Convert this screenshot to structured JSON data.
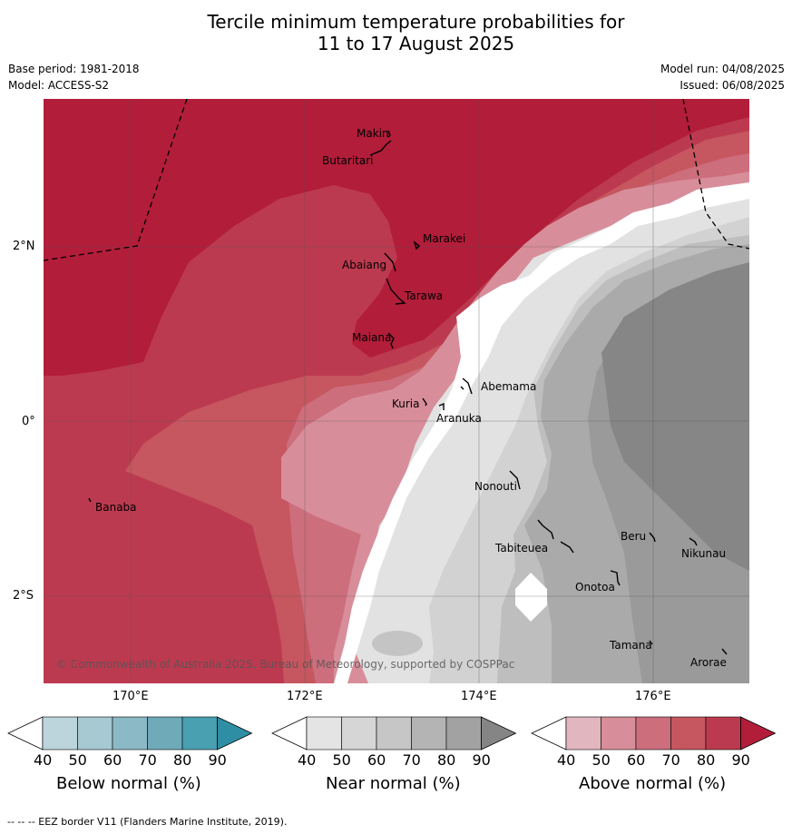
{
  "title_line1": "Tercile minimum temperature probabilities for",
  "title_line2": "11 to 17 August 2025",
  "base_period": "Base period: 1981-2018",
  "model": "Model: ACCESS-S2",
  "model_run": "Model run: 04/08/2025",
  "issued": "Issued: 06/08/2025",
  "map": {
    "lat_labels": [
      "2°N",
      "0°",
      "2°S"
    ],
    "lon_labels": [
      "170°E",
      "172°E",
      "174°E",
      "176°E"
    ],
    "copyright": "© Commonwealth of Australia 2025, Bureau of Meteorology, supported by COSPPac",
    "islands": [
      "Makin",
      "Butaritari",
      "Marakei",
      "Abaiang",
      "Tarawa",
      "Maiana",
      "Abemama",
      "Kuria",
      "Aranuka",
      "Banaba",
      "Nonouti",
      "Tabiteuea",
      "Beru",
      "Nikunau",
      "Onotoa",
      "Tamana",
      "Arorae"
    ]
  },
  "colorbars": [
    {
      "title": "Below normal (%)",
      "ticks": [
        "40",
        "50",
        "60",
        "70",
        "80",
        "90"
      ],
      "colors": [
        "#bcd4dc",
        "#a7c9d2",
        "#8cb9c6",
        "#6faab9",
        "#48a0b1",
        "#2e8fa4"
      ]
    },
    {
      "title": "Near normal (%)",
      "ticks": [
        "40",
        "50",
        "60",
        "70",
        "80",
        "90"
      ],
      "colors": [
        "#e4e4e4",
        "#d6d6d6",
        "#c6c6c6",
        "#b4b4b4",
        "#a2a2a2",
        "#858585"
      ]
    },
    {
      "title": "Above normal (%)",
      "ticks": [
        "40",
        "50",
        "60",
        "70",
        "80",
        "90"
      ],
      "colors": [
        "#e2b6bf",
        "#d88e9a",
        "#cd6e7d",
        "#c6565f",
        "#bc3a4f",
        "#b21d3a"
      ]
    }
  ],
  "footnote": "--  --  -- EEZ border V11 (Flanders Marine Institute, 2019)."
}
